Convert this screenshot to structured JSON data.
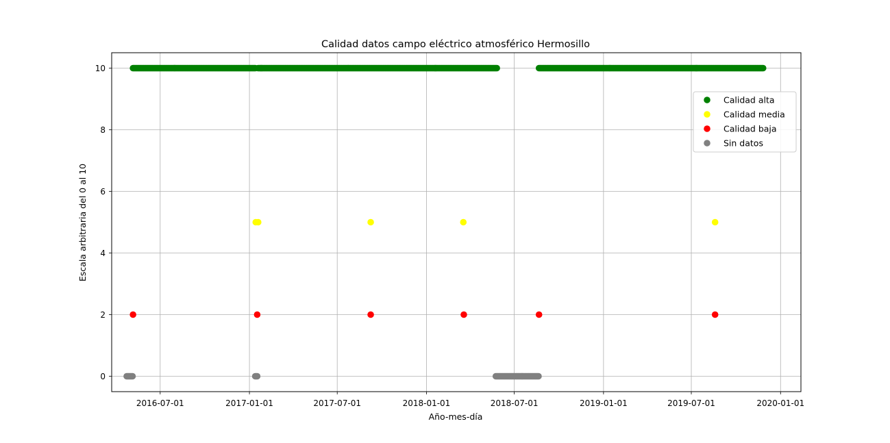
{
  "chart_data": {
    "type": "scatter",
    "title": "Calidad datos campo eléctrico atmosférico Hermosillo",
    "xlabel": "Año-mes-día",
    "ylabel": "Escala arbitraria del 0 al 10",
    "xlim": [
      "2016-03-23",
      "2020-02-12"
    ],
    "ylim": [
      -0.5,
      10.5
    ],
    "x_ticks": [
      "2016-07-01",
      "2017-01-01",
      "2017-07-01",
      "2018-01-01",
      "2018-07-01",
      "2019-01-01",
      "2019-07-01",
      "2020-01-01"
    ],
    "y_ticks": [
      0,
      2,
      4,
      6,
      8,
      10
    ],
    "grid": true,
    "legend_position": "upper right",
    "series": [
      {
        "name": "Calidad alta",
        "color": "#008000",
        "value": 10,
        "ranges": [
          [
            "2016-05-06",
            "2017-01-14"
          ],
          [
            "2017-01-19",
            "2018-05-27"
          ],
          [
            "2018-08-21",
            "2019-11-26"
          ]
        ],
        "points": []
      },
      {
        "name": "Calidad media",
        "color": "#ffff00",
        "value": 5,
        "ranges": [],
        "points": [
          "2017-01-14",
          "2017-01-19",
          "2017-09-08",
          "2018-03-18",
          "2019-08-19"
        ]
      },
      {
        "name": "Calidad baja",
        "color": "#ff0000",
        "value": 2,
        "ranges": [],
        "points": [
          "2016-05-06",
          "2017-01-17",
          "2017-09-08",
          "2018-03-19",
          "2018-08-21",
          "2019-08-19"
        ]
      },
      {
        "name": "Sin datos",
        "color": "#808080",
        "value": 0,
        "ranges": [
          [
            "2016-04-23",
            "2016-05-06"
          ],
          [
            "2017-01-13",
            "2017-01-17"
          ],
          [
            "2018-05-24",
            "2018-08-21"
          ]
        ],
        "points": []
      }
    ]
  }
}
